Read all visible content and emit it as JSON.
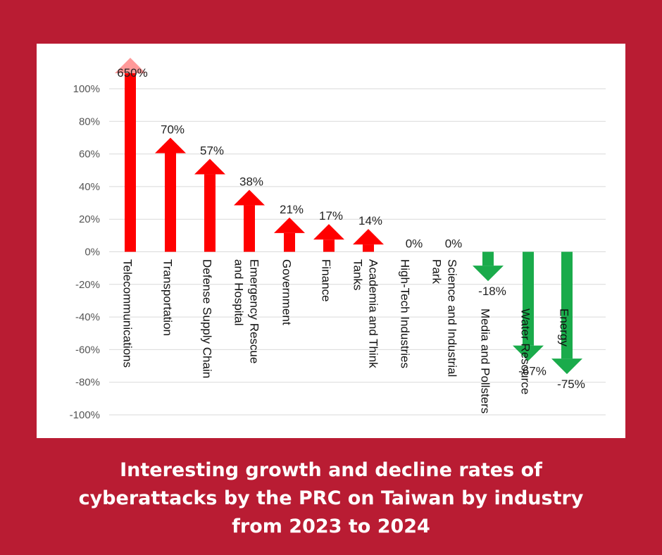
{
  "chart_data": {
    "type": "bar",
    "title": "Interesting growth and decline rates of cyberattacks by the PRC on Taiwan by industry from 2023 to 2024",
    "xlabel": "",
    "ylabel": "",
    "ylim": [
      -100,
      100
    ],
    "yticks": [
      "100%",
      "80%",
      "60%",
      "40%",
      "20%",
      "0%",
      "-20%",
      "-40%",
      "-60%",
      "-80%",
      "-100%"
    ],
    "ytick_values": [
      100,
      80,
      60,
      40,
      20,
      0,
      -20,
      -40,
      -60,
      -80,
      -100
    ],
    "categories": [
      [
        "Telecommunications"
      ],
      [
        "Transportation"
      ],
      [
        "Defense Supply Chain"
      ],
      [
        "Emergency Rescue",
        "and Hospital"
      ],
      [
        "Government"
      ],
      [
        "Finance"
      ],
      [
        "Academia and Think",
        "Tanks"
      ],
      [
        "High-Tech Industries"
      ],
      [
        "Science and Industrial",
        "Park"
      ],
      [
        "Media and Pollsters"
      ],
      [
        "Water Resource"
      ],
      [
        "Energy"
      ]
    ],
    "values": [
      650,
      70,
      57,
      38,
      21,
      17,
      14,
      0,
      0,
      -18,
      -67,
      -75
    ],
    "data_labels": [
      "650%",
      "70%",
      "57%",
      "38%",
      "21%",
      "17%",
      "14%",
      "0%",
      "0%",
      "-18%",
      "-67%",
      "-75%"
    ],
    "colors": {
      "increase": "#ff0000",
      "decrease": "#1aab4b",
      "overflow_head": "#ff9999"
    },
    "grid": true
  },
  "caption": {
    "line1": "Interesting growth and decline rates of",
    "line2": "cyberattacks by the PRC on Taiwan by industry",
    "line3": "from 2023 to 2024"
  }
}
